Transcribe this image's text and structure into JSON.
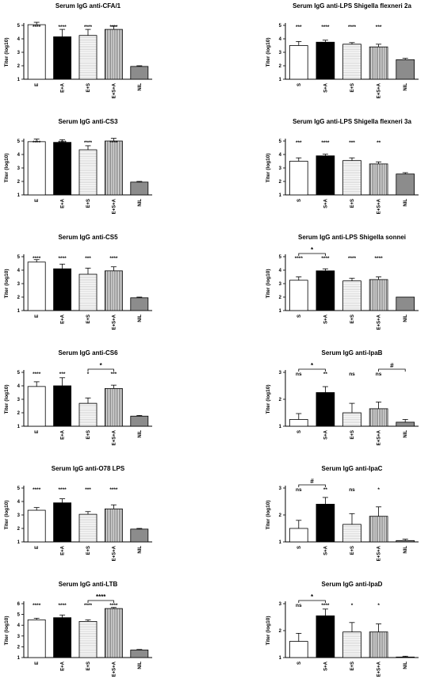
{
  "chart_data": [
    {
      "type": "bar",
      "title": "Serum IgG anti-CFA/1",
      "ylabel": "Titer (log10)",
      "categories": [
        "E",
        "E+A",
        "E+S",
        "E+S+A",
        "NIL"
      ],
      "values": [
        5.05,
        4.15,
        4.25,
        4.7,
        1.95
      ],
      "errors": [
        0.18,
        0.55,
        0.45,
        0.25,
        0.05
      ],
      "annotations": [
        "****",
        "****",
        "****",
        "****",
        ""
      ],
      "ylim": [
        1,
        5
      ],
      "yticks": [
        "1",
        "2",
        "3",
        "4",
        "5"
      ],
      "fills": [
        "white",
        "black",
        "hlines",
        "vlines",
        "gray"
      ],
      "comparisons": []
    },
    {
      "type": "bar",
      "title": "Serum IgG anti-LPS Shigella flexneri 2a",
      "ylabel": "Titer (log10)",
      "categories": [
        "S",
        "S+A",
        "E+S",
        "E+S+A",
        "NIL"
      ],
      "values": [
        3.5,
        3.75,
        3.6,
        3.4,
        2.45
      ],
      "errors": [
        0.3,
        0.15,
        0.12,
        0.2,
        0.1
      ],
      "annotations": [
        "***",
        "****",
        "****",
        "***",
        ""
      ],
      "ylim": [
        1,
        5
      ],
      "yticks": [
        "1",
        "2",
        "3",
        "4",
        "5"
      ],
      "fills": [
        "white",
        "black",
        "hlines",
        "vlines",
        "gray"
      ],
      "comparisons": []
    },
    {
      "type": "bar",
      "title": "Serum IgG anti-CS3",
      "ylabel": "Titer (log10)",
      "categories": [
        "E",
        "E+A",
        "E+S",
        "E+S+A",
        "NIL"
      ],
      "values": [
        4.95,
        4.9,
        4.35,
        5.0,
        1.95
      ],
      "errors": [
        0.2,
        0.2,
        0.3,
        0.2,
        0.05
      ],
      "annotations": [
        "****",
        "****",
        "****",
        "****",
        ""
      ],
      "ylim": [
        1,
        5
      ],
      "yticks": [
        "1",
        "2",
        "3",
        "4",
        "5"
      ],
      "fills": [
        "white",
        "black",
        "hlines",
        "vlines",
        "gray"
      ],
      "comparisons": []
    },
    {
      "type": "bar",
      "title": "Serum IgG anti-LPS Shigella flexneri 3a",
      "ylabel": "Titer (log10)",
      "categories": [
        "S",
        "S+A",
        "E+S",
        "E+S+A",
        "NIL"
      ],
      "values": [
        3.5,
        3.9,
        3.55,
        3.3,
        2.55
      ],
      "errors": [
        0.25,
        0.12,
        0.2,
        0.15,
        0.1
      ],
      "annotations": [
        "***",
        "****",
        "***",
        "**",
        ""
      ],
      "ylim": [
        1,
        5
      ],
      "yticks": [
        "1",
        "2",
        "3",
        "4",
        "5"
      ],
      "fills": [
        "white",
        "black",
        "hlines",
        "vlines",
        "gray"
      ],
      "comparisons": []
    },
    {
      "type": "bar",
      "title": "Serum IgG anti-CS5",
      "ylabel": "Titer (log10)",
      "categories": [
        "E",
        "E+A",
        "E+S",
        "E+S+A",
        "NIL"
      ],
      "values": [
        4.6,
        4.1,
        3.7,
        3.95,
        1.95
      ],
      "errors": [
        0.18,
        0.35,
        0.45,
        0.3,
        0.05
      ],
      "annotations": [
        "****",
        "****",
        "***",
        "****",
        ""
      ],
      "ylim": [
        1,
        5
      ],
      "yticks": [
        "1",
        "2",
        "3",
        "4",
        "5"
      ],
      "fills": [
        "white",
        "black",
        "hlines",
        "vlines",
        "gray"
      ],
      "comparisons": []
    },
    {
      "type": "bar",
      "title": "Serum IgG anti-LPS Shigella sonnei",
      "ylabel": "Titer (log10)",
      "categories": [
        "S",
        "S+A",
        "E+S",
        "E+S+A",
        "NIL"
      ],
      "values": [
        3.25,
        3.95,
        3.2,
        3.3,
        2.0
      ],
      "errors": [
        0.25,
        0.15,
        0.2,
        0.2,
        0
      ],
      "annotations": [
        "****",
        "****",
        "****",
        "****",
        ""
      ],
      "ylim": [
        1,
        5
      ],
      "yticks": [
        "1",
        "2",
        "3",
        "4",
        "5"
      ],
      "fills": [
        "white",
        "black",
        "hlines",
        "vlines",
        "gray"
      ],
      "comparisons": [
        {
          "from": 0,
          "to": 1,
          "label": "*"
        }
      ]
    },
    {
      "type": "bar",
      "title": "Serum IgG anti-CS6",
      "ylabel": "Titer (log10)",
      "categories": [
        "E",
        "E+A",
        "E+S",
        "E+S+A",
        "NIL"
      ],
      "values": [
        3.95,
        4.0,
        2.7,
        3.8,
        1.75
      ],
      "errors": [
        0.35,
        0.6,
        0.4,
        0.25,
        0.05
      ],
      "annotations": [
        "****",
        "***",
        "*",
        "***",
        ""
      ],
      "ylim": [
        1,
        5
      ],
      "yticks": [
        "1",
        "2",
        "3",
        "4",
        "5"
      ],
      "fills": [
        "white",
        "black",
        "hlines",
        "vlines",
        "gray"
      ],
      "comparisons": [
        {
          "from": 2,
          "to": 3,
          "label": "*"
        }
      ]
    },
    {
      "type": "bar",
      "title": "Serum IgG anti-IpaB",
      "ylabel": "Titer (log10)",
      "categories": [
        "S",
        "S+A",
        "E+S",
        "E+S+A",
        "NIL"
      ],
      "values": [
        1.25,
        2.25,
        1.5,
        1.65,
        1.15
      ],
      "errors": [
        0.22,
        0.22,
        0.35,
        0.25,
        0.1
      ],
      "annotations": [
        "ns",
        "**",
        "ns",
        "ns",
        ""
      ],
      "ylim": [
        1,
        3
      ],
      "yticks": [
        "1",
        "2",
        "3"
      ],
      "fills": [
        "white",
        "black",
        "hlines",
        "vlines",
        "gray"
      ],
      "comparisons": [
        {
          "from": 0,
          "to": 1,
          "label": "*"
        },
        {
          "from": 3,
          "to": 4,
          "label": "#"
        }
      ]
    },
    {
      "type": "bar",
      "title": "Serum IgG anti-O78 LPS",
      "ylabel": "Titer (log10)",
      "categories": [
        "E",
        "E+A",
        "E+S",
        "E+S+A",
        "NIL"
      ],
      "values": [
        3.35,
        3.9,
        3.05,
        3.45,
        1.95
      ],
      "errors": [
        0.2,
        0.3,
        0.2,
        0.3,
        0.05
      ],
      "annotations": [
        "****",
        "****",
        "***",
        "****",
        ""
      ],
      "ylim": [
        1,
        5
      ],
      "yticks": [
        "1",
        "2",
        "3",
        "4",
        "5"
      ],
      "fills": [
        "white",
        "black",
        "hlines",
        "vlines",
        "gray"
      ],
      "comparisons": []
    },
    {
      "type": "bar",
      "title": "Serum IgG anti-IpaC",
      "ylabel": "Titer (log10)",
      "categories": [
        "S",
        "S+A",
        "E+S",
        "E+S+A",
        "NIL"
      ],
      "values": [
        1.5,
        2.4,
        1.65,
        1.95,
        1.05
      ],
      "errors": [
        0.3,
        0.25,
        0.4,
        0.35,
        0.05
      ],
      "annotations": [
        "ns",
        "**",
        "ns",
        "*",
        ""
      ],
      "ylim": [
        1,
        3
      ],
      "yticks": [
        "1",
        "2",
        "3"
      ],
      "fills": [
        "white",
        "black",
        "hlines",
        "vlines",
        "gray"
      ],
      "comparisons": [
        {
          "from": 0,
          "to": 1,
          "label": "#"
        }
      ]
    },
    {
      "type": "bar",
      "title": "Serum IgG anti-LTB",
      "ylabel": "Titer (log10)",
      "categories": [
        "E",
        "E+A",
        "E+S",
        "E+S+A",
        "NIL"
      ],
      "values": [
        4.5,
        4.7,
        4.35,
        5.55,
        1.7
      ],
      "errors": [
        0.15,
        0.25,
        0.15,
        0.1,
        0.05
      ],
      "annotations": [
        "****",
        "****",
        "****",
        "****",
        ""
      ],
      "ylim": [
        1,
        6
      ],
      "yticks": [
        "1",
        "2",
        "3",
        "4",
        "5",
        "6"
      ],
      "fills": [
        "white",
        "black",
        "hlines",
        "vlines",
        "gray"
      ],
      "comparisons": [
        {
          "from": 2,
          "to": 3,
          "label": "****"
        }
      ]
    },
    {
      "type": "bar",
      "title": "Serum IgG anti-IpaD",
      "ylabel": "Titer (log10)",
      "categories": [
        "S",
        "S+A",
        "E+S",
        "E+S+A",
        "NIL"
      ],
      "values": [
        1.6,
        2.55,
        1.95,
        1.95,
        1.02
      ],
      "errors": [
        0.3,
        0.25,
        0.35,
        0.3,
        0.03
      ],
      "annotations": [
        "ns",
        "****",
        "*",
        "*",
        ""
      ],
      "ylim": [
        1,
        3
      ],
      "yticks": [
        "1",
        "2",
        "3"
      ],
      "fills": [
        "white",
        "black",
        "hlines",
        "vlines",
        "gray"
      ],
      "comparisons": [
        {
          "from": 0,
          "to": 1,
          "label": "*"
        }
      ]
    }
  ]
}
